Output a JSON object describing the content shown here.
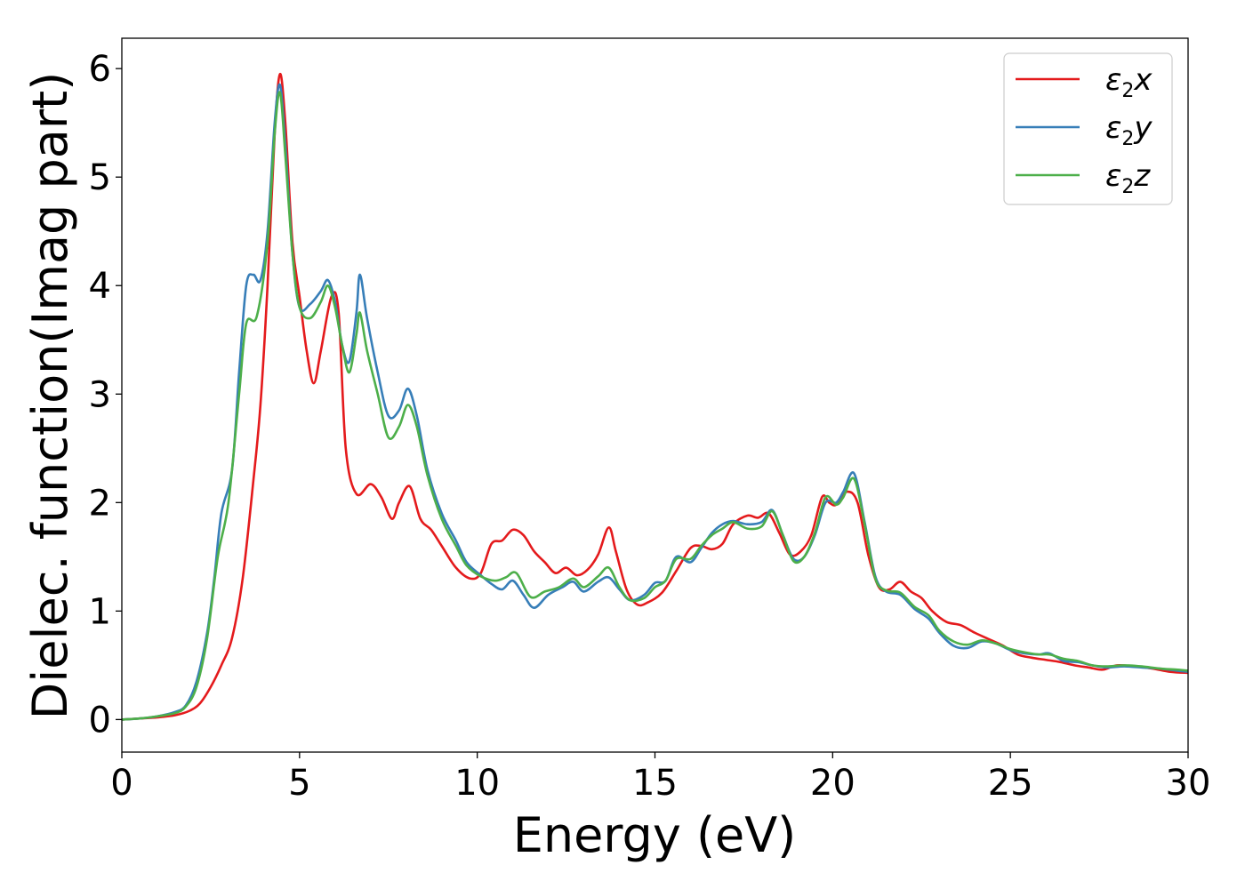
{
  "chart_data": {
    "type": "line",
    "title": "",
    "xlabel": "Energy (eV)",
    "ylabel": "Dielec. function(Imag part)",
    "xlim": [
      0,
      30
    ],
    "ylim": [
      -0.3,
      6.28
    ],
    "xticks": [
      0,
      5,
      10,
      15,
      20,
      25,
      30
    ],
    "yticks": [
      0,
      1,
      2,
      3,
      4,
      5,
      6
    ],
    "grid": false,
    "legend_position": "top-right",
    "series": [
      {
        "name": "ε2x",
        "legend": {
          "symbol": "ε",
          "sub": "2",
          "axis": "x"
        },
        "color": "#e41a1c",
        "points": [
          [
            0,
            0
          ],
          [
            0.5,
            0.01
          ],
          [
            1.0,
            0.02
          ],
          [
            1.5,
            0.04
          ],
          [
            1.9,
            0.08
          ],
          [
            2.2,
            0.15
          ],
          [
            2.5,
            0.3
          ],
          [
            2.8,
            0.5
          ],
          [
            3.1,
            0.75
          ],
          [
            3.4,
            1.3
          ],
          [
            3.7,
            2.2
          ],
          [
            3.9,
            2.9
          ],
          [
            4.1,
            4.0
          ],
          [
            4.3,
            5.4
          ],
          [
            4.45,
            5.95
          ],
          [
            4.6,
            5.5
          ],
          [
            4.8,
            4.4
          ],
          [
            5.0,
            3.9
          ],
          [
            5.2,
            3.4
          ],
          [
            5.4,
            3.1
          ],
          [
            5.6,
            3.4
          ],
          [
            5.9,
            3.9
          ],
          [
            6.1,
            3.75
          ],
          [
            6.3,
            2.5
          ],
          [
            6.6,
            2.08
          ],
          [
            7.0,
            2.17
          ],
          [
            7.3,
            2.05
          ],
          [
            7.6,
            1.85
          ],
          [
            7.8,
            2.0
          ],
          [
            8.1,
            2.15
          ],
          [
            8.4,
            1.85
          ],
          [
            8.7,
            1.75
          ],
          [
            9.0,
            1.6
          ],
          [
            9.4,
            1.4
          ],
          [
            9.8,
            1.3
          ],
          [
            10.1,
            1.35
          ],
          [
            10.4,
            1.62
          ],
          [
            10.7,
            1.65
          ],
          [
            11.0,
            1.75
          ],
          [
            11.3,
            1.7
          ],
          [
            11.6,
            1.55
          ],
          [
            11.9,
            1.45
          ],
          [
            12.2,
            1.35
          ],
          [
            12.5,
            1.4
          ],
          [
            12.8,
            1.33
          ],
          [
            13.1,
            1.38
          ],
          [
            13.4,
            1.52
          ],
          [
            13.7,
            1.77
          ],
          [
            13.9,
            1.55
          ],
          [
            14.2,
            1.2
          ],
          [
            14.5,
            1.06
          ],
          [
            14.8,
            1.08
          ],
          [
            15.2,
            1.17
          ],
          [
            15.6,
            1.37
          ],
          [
            16.0,
            1.58
          ],
          [
            16.3,
            1.6
          ],
          [
            16.6,
            1.57
          ],
          [
            16.9,
            1.62
          ],
          [
            17.2,
            1.8
          ],
          [
            17.6,
            1.88
          ],
          [
            17.9,
            1.86
          ],
          [
            18.2,
            1.9
          ],
          [
            18.5,
            1.72
          ],
          [
            18.8,
            1.52
          ],
          [
            19.1,
            1.55
          ],
          [
            19.4,
            1.7
          ],
          [
            19.7,
            2.05
          ],
          [
            19.9,
            2.0
          ],
          [
            20.1,
            1.98
          ],
          [
            20.4,
            2.1
          ],
          [
            20.7,
            2.0
          ],
          [
            21.0,
            1.52
          ],
          [
            21.3,
            1.22
          ],
          [
            21.6,
            1.2
          ],
          [
            21.9,
            1.27
          ],
          [
            22.2,
            1.18
          ],
          [
            22.5,
            1.12
          ],
          [
            22.8,
            1.0
          ],
          [
            23.2,
            0.9
          ],
          [
            23.6,
            0.87
          ],
          [
            24.0,
            0.8
          ],
          [
            24.4,
            0.74
          ],
          [
            24.8,
            0.68
          ],
          [
            25.2,
            0.6
          ],
          [
            25.6,
            0.57
          ],
          [
            26.0,
            0.55
          ],
          [
            26.4,
            0.53
          ],
          [
            26.8,
            0.5
          ],
          [
            27.2,
            0.48
          ],
          [
            27.6,
            0.46
          ],
          [
            28.0,
            0.5
          ],
          [
            28.5,
            0.49
          ],
          [
            29.0,
            0.47
          ],
          [
            29.5,
            0.44
          ],
          [
            30.0,
            0.43
          ]
        ]
      },
      {
        "name": "ε2y",
        "legend": {
          "symbol": "ε",
          "sub": "2",
          "axis": "y"
        },
        "color": "#377eb8",
        "points": [
          [
            0,
            0
          ],
          [
            0.5,
            0.01
          ],
          [
            1.0,
            0.03
          ],
          [
            1.5,
            0.07
          ],
          [
            1.8,
            0.13
          ],
          [
            2.1,
            0.35
          ],
          [
            2.4,
            0.8
          ],
          [
            2.6,
            1.3
          ],
          [
            2.8,
            1.9
          ],
          [
            3.1,
            2.3
          ],
          [
            3.3,
            3.2
          ],
          [
            3.5,
            4.0
          ],
          [
            3.7,
            4.1
          ],
          [
            3.9,
            4.05
          ],
          [
            4.1,
            4.5
          ],
          [
            4.3,
            5.5
          ],
          [
            4.45,
            5.85
          ],
          [
            4.6,
            5.3
          ],
          [
            4.8,
            4.3
          ],
          [
            5.0,
            3.8
          ],
          [
            5.3,
            3.83
          ],
          [
            5.6,
            3.95
          ],
          [
            5.8,
            4.05
          ],
          [
            6.0,
            3.85
          ],
          [
            6.2,
            3.45
          ],
          [
            6.4,
            3.3
          ],
          [
            6.6,
            3.75
          ],
          [
            6.7,
            4.1
          ],
          [
            6.9,
            3.7
          ],
          [
            7.2,
            3.2
          ],
          [
            7.5,
            2.8
          ],
          [
            7.8,
            2.85
          ],
          [
            8.05,
            3.05
          ],
          [
            8.3,
            2.8
          ],
          [
            8.6,
            2.3
          ],
          [
            9.0,
            1.9
          ],
          [
            9.4,
            1.65
          ],
          [
            9.7,
            1.45
          ],
          [
            10.1,
            1.33
          ],
          [
            10.4,
            1.25
          ],
          [
            10.7,
            1.2
          ],
          [
            11.0,
            1.28
          ],
          [
            11.3,
            1.15
          ],
          [
            11.6,
            1.03
          ],
          [
            12.0,
            1.15
          ],
          [
            12.4,
            1.22
          ],
          [
            12.7,
            1.27
          ],
          [
            13.0,
            1.18
          ],
          [
            13.4,
            1.27
          ],
          [
            13.7,
            1.31
          ],
          [
            14.0,
            1.2
          ],
          [
            14.3,
            1.1
          ],
          [
            14.7,
            1.15
          ],
          [
            15.0,
            1.26
          ],
          [
            15.3,
            1.28
          ],
          [
            15.6,
            1.5
          ],
          [
            16.0,
            1.45
          ],
          [
            16.3,
            1.58
          ],
          [
            16.6,
            1.72
          ],
          [
            16.9,
            1.8
          ],
          [
            17.2,
            1.83
          ],
          [
            17.6,
            1.8
          ],
          [
            18.0,
            1.82
          ],
          [
            18.3,
            1.93
          ],
          [
            18.6,
            1.7
          ],
          [
            18.9,
            1.48
          ],
          [
            19.2,
            1.5
          ],
          [
            19.5,
            1.7
          ],
          [
            19.8,
            2.0
          ],
          [
            20.1,
            2.0
          ],
          [
            20.3,
            2.1
          ],
          [
            20.6,
            2.27
          ],
          [
            20.9,
            1.82
          ],
          [
            21.2,
            1.32
          ],
          [
            21.5,
            1.18
          ],
          [
            21.9,
            1.15
          ],
          [
            22.3,
            1.02
          ],
          [
            22.7,
            0.93
          ],
          [
            23.0,
            0.8
          ],
          [
            23.4,
            0.68
          ],
          [
            23.8,
            0.66
          ],
          [
            24.2,
            0.72
          ],
          [
            24.6,
            0.7
          ],
          [
            25.0,
            0.64
          ],
          [
            25.4,
            0.61
          ],
          [
            25.8,
            0.6
          ],
          [
            26.1,
            0.61
          ],
          [
            26.5,
            0.54
          ],
          [
            26.9,
            0.53
          ],
          [
            27.3,
            0.5
          ],
          [
            27.7,
            0.48
          ],
          [
            28.2,
            0.49
          ],
          [
            28.7,
            0.48
          ],
          [
            29.2,
            0.47
          ],
          [
            29.7,
            0.45
          ],
          [
            30.0,
            0.44
          ]
        ]
      },
      {
        "name": "ε2z",
        "legend": {
          "symbol": "ε",
          "sub": "2",
          "axis": "z"
        },
        "color": "#4daf4a",
        "points": [
          [
            0,
            0
          ],
          [
            0.5,
            0.01
          ],
          [
            1.0,
            0.03
          ],
          [
            1.5,
            0.06
          ],
          [
            1.8,
            0.12
          ],
          [
            2.1,
            0.3
          ],
          [
            2.4,
            0.75
          ],
          [
            2.7,
            1.5
          ],
          [
            3.0,
            2.0
          ],
          [
            3.3,
            3.0
          ],
          [
            3.5,
            3.65
          ],
          [
            3.8,
            3.72
          ],
          [
            4.1,
            4.4
          ],
          [
            4.3,
            5.4
          ],
          [
            4.45,
            5.78
          ],
          [
            4.6,
            5.2
          ],
          [
            4.8,
            4.3
          ],
          [
            5.0,
            3.8
          ],
          [
            5.3,
            3.7
          ],
          [
            5.6,
            3.85
          ],
          [
            5.8,
            4.0
          ],
          [
            6.0,
            3.8
          ],
          [
            6.2,
            3.45
          ],
          [
            6.4,
            3.2
          ],
          [
            6.6,
            3.55
          ],
          [
            6.7,
            3.75
          ],
          [
            6.9,
            3.4
          ],
          [
            7.2,
            3.0
          ],
          [
            7.5,
            2.6
          ],
          [
            7.8,
            2.7
          ],
          [
            8.05,
            2.9
          ],
          [
            8.3,
            2.7
          ],
          [
            8.6,
            2.25
          ],
          [
            9.0,
            1.85
          ],
          [
            9.4,
            1.6
          ],
          [
            9.7,
            1.42
          ],
          [
            10.1,
            1.32
          ],
          [
            10.5,
            1.28
          ],
          [
            10.8,
            1.31
          ],
          [
            11.1,
            1.35
          ],
          [
            11.5,
            1.13
          ],
          [
            11.9,
            1.18
          ],
          [
            12.3,
            1.22
          ],
          [
            12.7,
            1.3
          ],
          [
            13.0,
            1.22
          ],
          [
            13.4,
            1.32
          ],
          [
            13.7,
            1.4
          ],
          [
            14.0,
            1.22
          ],
          [
            14.3,
            1.1
          ],
          [
            14.7,
            1.12
          ],
          [
            15.0,
            1.22
          ],
          [
            15.3,
            1.28
          ],
          [
            15.6,
            1.48
          ],
          [
            16.0,
            1.48
          ],
          [
            16.3,
            1.6
          ],
          [
            16.6,
            1.7
          ],
          [
            16.9,
            1.76
          ],
          [
            17.2,
            1.82
          ],
          [
            17.6,
            1.76
          ],
          [
            18.0,
            1.78
          ],
          [
            18.3,
            1.92
          ],
          [
            18.6,
            1.7
          ],
          [
            18.9,
            1.46
          ],
          [
            19.2,
            1.5
          ],
          [
            19.5,
            1.72
          ],
          [
            19.8,
            2.05
          ],
          [
            20.1,
            1.98
          ],
          [
            20.3,
            2.05
          ],
          [
            20.6,
            2.22
          ],
          [
            20.9,
            1.8
          ],
          [
            21.2,
            1.3
          ],
          [
            21.5,
            1.19
          ],
          [
            21.9,
            1.17
          ],
          [
            22.3,
            1.04
          ],
          [
            22.7,
            0.96
          ],
          [
            23.0,
            0.82
          ],
          [
            23.4,
            0.72
          ],
          [
            23.8,
            0.69
          ],
          [
            24.2,
            0.73
          ],
          [
            24.6,
            0.7
          ],
          [
            25.0,
            0.65
          ],
          [
            25.4,
            0.62
          ],
          [
            25.8,
            0.6
          ],
          [
            26.1,
            0.6
          ],
          [
            26.5,
            0.56
          ],
          [
            26.9,
            0.54
          ],
          [
            27.3,
            0.5
          ],
          [
            27.7,
            0.49
          ],
          [
            28.2,
            0.5
          ],
          [
            28.7,
            0.49
          ],
          [
            29.2,
            0.47
          ],
          [
            29.7,
            0.46
          ],
          [
            30.0,
            0.45
          ]
        ]
      }
    ]
  }
}
